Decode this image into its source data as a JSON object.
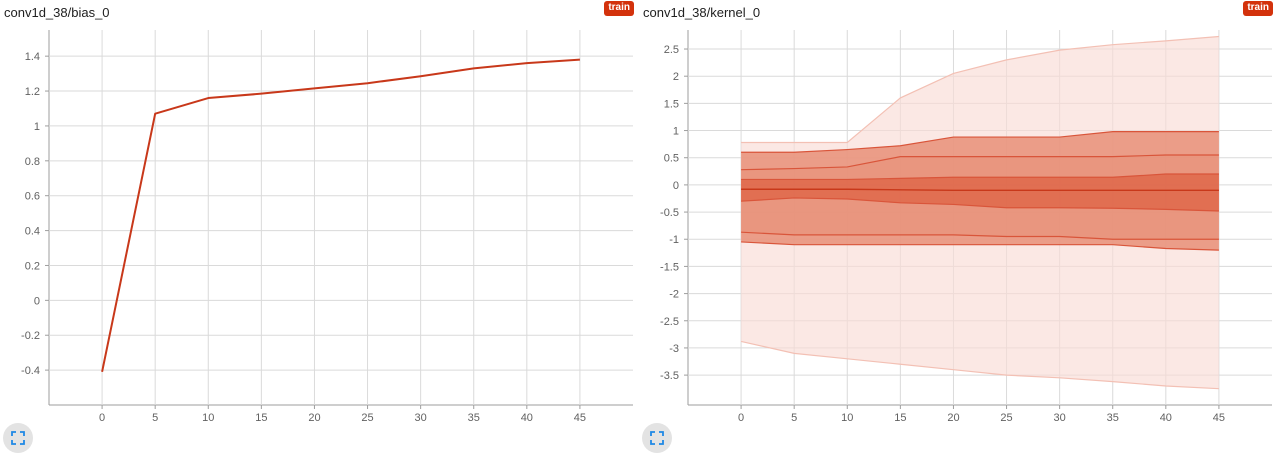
{
  "colors": {
    "accent": "#d3320c",
    "band_light": "#f9dcd6",
    "band_mid": "#e78f78",
    "band_dark": "#dd6243",
    "line": "#c8381a",
    "grid": "#dadada"
  },
  "chart_data": [
    {
      "type": "line",
      "title": "conv1d_38/bias_0",
      "badge": "train",
      "x": [
        0,
        5,
        10,
        15,
        20,
        25,
        30,
        35,
        40,
        45
      ],
      "series": [
        {
          "values": [
            -0.41,
            1.07,
            1.16,
            1.185,
            1.215,
            1.245,
            1.285,
            1.33,
            1.36,
            1.38
          ]
        }
      ],
      "xticks": [
        0,
        5,
        10,
        15,
        20,
        25,
        30,
        35,
        40,
        45
      ],
      "yticks": [
        -0.4,
        -0.2,
        0,
        0.2,
        0.4,
        0.6,
        0.8,
        1,
        1.2,
        1.4
      ],
      "xlim": [
        -5,
        50
      ],
      "ylim": [
        -0.6,
        1.55
      ],
      "grid": true
    },
    {
      "type": "area",
      "title": "conv1d_38/kernel_0",
      "badge": "train",
      "x": [
        0,
        5,
        10,
        15,
        20,
        25,
        30,
        35,
        40,
        45
      ],
      "percentile_bands": [
        {
          "lower": [
            -2.88,
            -3.1,
            -3.2,
            -3.3,
            -3.4,
            -3.5,
            -3.55,
            -3.62,
            -3.7,
            -3.75
          ],
          "upper": [
            0.78,
            0.78,
            0.78,
            1.6,
            2.05,
            2.3,
            2.48,
            2.58,
            2.65,
            2.73
          ]
        },
        {
          "lower": [
            -1.05,
            -1.1,
            -1.1,
            -1.1,
            -1.1,
            -1.1,
            -1.1,
            -1.1,
            -1.17,
            -1.2
          ],
          "upper": [
            0.6,
            0.6,
            0.65,
            0.72,
            0.88,
            0.88,
            0.88,
            0.98,
            0.98,
            0.98
          ]
        },
        {
          "lower": [
            -0.87,
            -0.92,
            -0.92,
            -0.92,
            -0.92,
            -0.95,
            -0.95,
            -1.0,
            -1.0,
            -1.0
          ],
          "upper": [
            0.28,
            0.3,
            0.33,
            0.52,
            0.52,
            0.52,
            0.52,
            0.52,
            0.55,
            0.55
          ]
        },
        {
          "lower": [
            -0.3,
            -0.24,
            -0.26,
            -0.33,
            -0.36,
            -0.42,
            -0.42,
            -0.43,
            -0.45,
            -0.48
          ],
          "upper": [
            0.1,
            0.1,
            0.1,
            0.12,
            0.14,
            0.14,
            0.14,
            0.14,
            0.2,
            0.2
          ]
        }
      ],
      "median": [
        -0.08,
        -0.08,
        -0.08,
        -0.09,
        -0.1,
        -0.1,
        -0.1,
        -0.1,
        -0.1,
        -0.1
      ],
      "xticks": [
        0,
        5,
        10,
        15,
        20,
        25,
        30,
        35,
        40,
        45
      ],
      "yticks": [
        -3.5,
        -3,
        -2.5,
        -2,
        -1.5,
        -1,
        -0.5,
        0,
        0.5,
        1,
        1.5,
        2,
        2.5
      ],
      "xlim": [
        -5,
        50
      ],
      "ylim": [
        -4.05,
        2.85
      ],
      "grid": true
    }
  ]
}
